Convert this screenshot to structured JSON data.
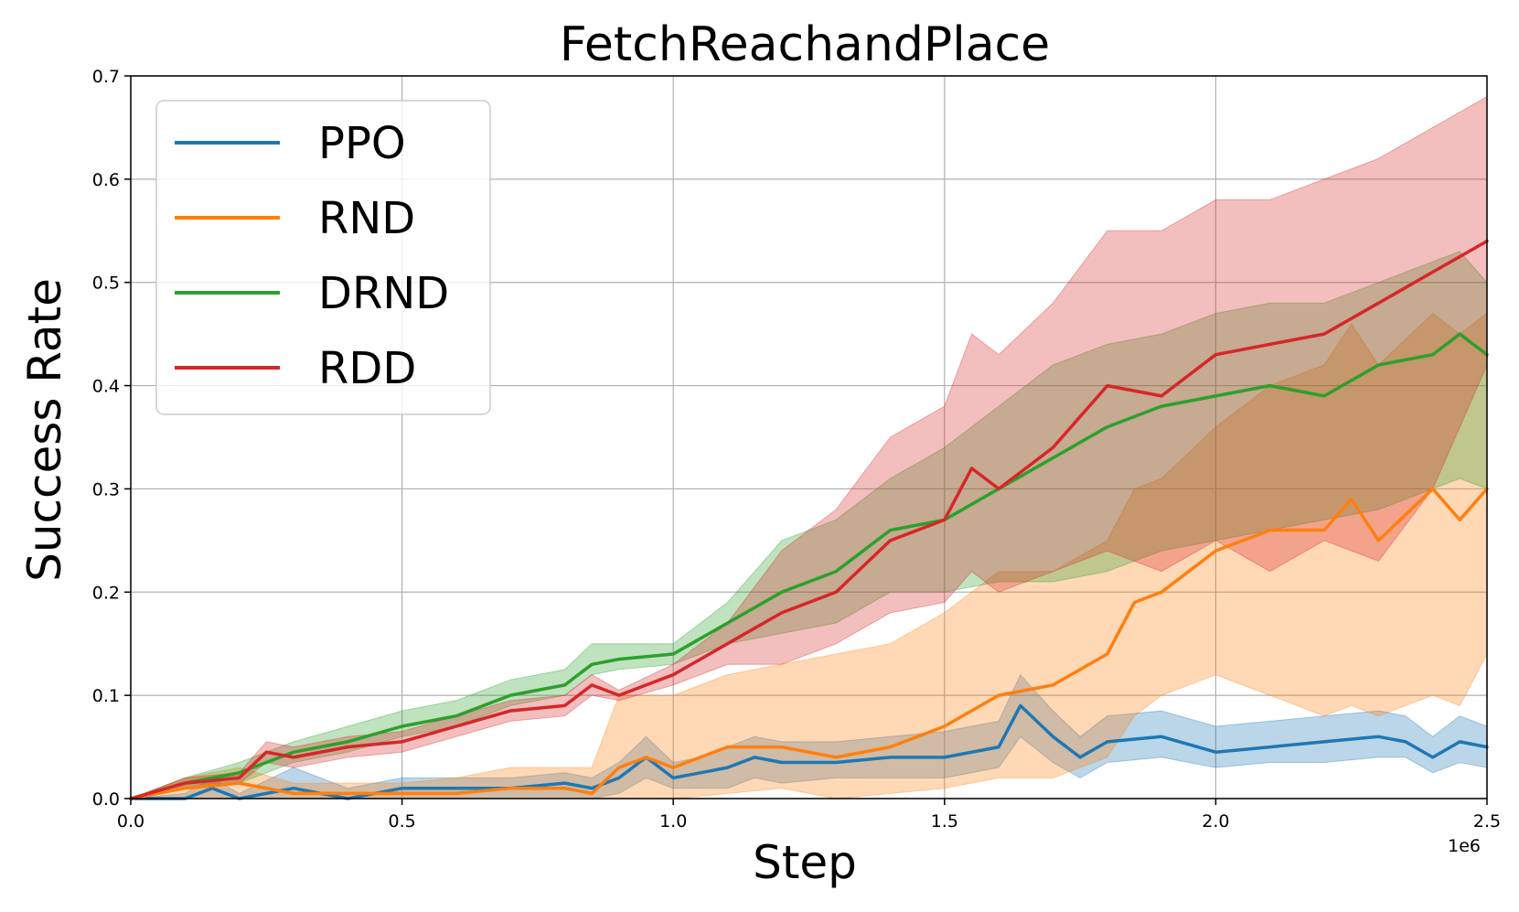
{
  "chart_data": {
    "type": "line",
    "title": "FetchReachandPlace",
    "xlabel": "Step",
    "ylabel": "Success Rate",
    "x_offset_label": "1e6",
    "xlim": [
      0,
      2.5
    ],
    "ylim": [
      0,
      0.7
    ],
    "xticks": [
      0.0,
      0.5,
      1.0,
      1.5,
      2.0,
      2.5
    ],
    "xtick_labels": [
      "0.0",
      "0.5",
      "1.0",
      "1.5",
      "2.0",
      "2.5"
    ],
    "yticks": [
      0.0,
      0.1,
      0.2,
      0.3,
      0.4,
      0.5,
      0.6,
      0.7
    ],
    "ytick_labels": [
      "0.0",
      "0.1",
      "0.2",
      "0.3",
      "0.4",
      "0.5",
      "0.6",
      "0.7"
    ],
    "grid": true,
    "legend_position": "upper-left",
    "series": [
      {
        "name": "PPO",
        "color": "#1f77b4",
        "x": [
          0,
          0.1,
          0.15,
          0.2,
          0.3,
          0.4,
          0.5,
          0.6,
          0.7,
          0.8,
          0.85,
          0.9,
          0.95,
          1.0,
          1.05,
          1.1,
          1.15,
          1.2,
          1.3,
          1.4,
          1.5,
          1.6,
          1.64,
          1.7,
          1.75,
          1.8,
          1.9,
          2.0,
          2.1,
          2.2,
          2.3,
          2.35,
          2.4,
          2.45,
          2.5
        ],
        "y": [
          0,
          0.0,
          0.01,
          0.0,
          0.01,
          0.0,
          0.01,
          0.01,
          0.01,
          0.015,
          0.01,
          0.02,
          0.04,
          0.02,
          0.025,
          0.03,
          0.04,
          0.035,
          0.035,
          0.04,
          0.04,
          0.05,
          0.09,
          0.06,
          0.04,
          0.055,
          0.06,
          0.045,
          0.05,
          0.055,
          0.06,
          0.055,
          0.04,
          0.055,
          0.05
        ],
        "lower": [
          0,
          0.0,
          0.0,
          0.0,
          0.0,
          0.0,
          0.0,
          0.0,
          0.0,
          0.0,
          0.0,
          0.005,
          0.02,
          0.01,
          0.01,
          0.01,
          0.02,
          0.015,
          0.02,
          0.02,
          0.02,
          0.03,
          0.06,
          0.035,
          0.02,
          0.035,
          0.04,
          0.03,
          0.035,
          0.035,
          0.04,
          0.04,
          0.025,
          0.035,
          0.03
        ],
        "upper": [
          0,
          0.005,
          0.02,
          0.005,
          0.03,
          0.01,
          0.02,
          0.02,
          0.02,
          0.025,
          0.02,
          0.035,
          0.06,
          0.035,
          0.04,
          0.05,
          0.06,
          0.055,
          0.055,
          0.06,
          0.065,
          0.075,
          0.12,
          0.085,
          0.06,
          0.08,
          0.085,
          0.07,
          0.075,
          0.08,
          0.085,
          0.08,
          0.06,
          0.08,
          0.07
        ]
      },
      {
        "name": "RND",
        "color": "#ff7f0e",
        "x": [
          0,
          0.1,
          0.2,
          0.3,
          0.4,
          0.5,
          0.6,
          0.7,
          0.8,
          0.85,
          0.9,
          0.95,
          1.0,
          1.1,
          1.2,
          1.3,
          1.4,
          1.5,
          1.6,
          1.7,
          1.8,
          1.85,
          1.9,
          2.0,
          2.1,
          2.2,
          2.25,
          2.3,
          2.4,
          2.45,
          2.5
        ],
        "y": [
          0,
          0.01,
          0.015,
          0.005,
          0.005,
          0.005,
          0.005,
          0.01,
          0.01,
          0.005,
          0.03,
          0.04,
          0.03,
          0.05,
          0.05,
          0.04,
          0.05,
          0.07,
          0.1,
          0.11,
          0.14,
          0.19,
          0.2,
          0.24,
          0.26,
          0.26,
          0.29,
          0.25,
          0.3,
          0.27,
          0.3
        ],
        "lower": [
          0,
          0.0,
          0.0,
          0.0,
          0.0,
          0.0,
          0.0,
          0.0,
          0.0,
          0.0,
          0.0,
          0.0,
          0.0,
          0.005,
          0.01,
          0.0,
          0.005,
          0.01,
          0.02,
          0.02,
          0.04,
          0.08,
          0.1,
          0.12,
          0.1,
          0.08,
          0.09,
          0.08,
          0.1,
          0.09,
          0.14
        ],
        "upper": [
          0,
          0.02,
          0.03,
          0.015,
          0.015,
          0.015,
          0.02,
          0.03,
          0.03,
          0.03,
          0.1,
          0.1,
          0.1,
          0.12,
          0.13,
          0.14,
          0.15,
          0.18,
          0.22,
          0.22,
          0.25,
          0.3,
          0.31,
          0.36,
          0.4,
          0.42,
          0.46,
          0.42,
          0.47,
          0.45,
          0.47
        ]
      },
      {
        "name": "DRND",
        "color": "#2ca02c",
        "x": [
          0,
          0.1,
          0.2,
          0.3,
          0.4,
          0.5,
          0.6,
          0.7,
          0.8,
          0.85,
          0.9,
          1.0,
          1.1,
          1.2,
          1.3,
          1.4,
          1.5,
          1.6,
          1.7,
          1.8,
          1.9,
          2.0,
          2.1,
          2.2,
          2.3,
          2.4,
          2.45,
          2.5
        ],
        "y": [
          0,
          0.015,
          0.025,
          0.045,
          0.055,
          0.07,
          0.08,
          0.1,
          0.11,
          0.13,
          0.135,
          0.14,
          0.17,
          0.2,
          0.22,
          0.26,
          0.27,
          0.3,
          0.33,
          0.36,
          0.38,
          0.39,
          0.4,
          0.39,
          0.42,
          0.43,
          0.45,
          0.43
        ],
        "lower": [
          0,
          0.01,
          0.015,
          0.035,
          0.045,
          0.06,
          0.07,
          0.09,
          0.1,
          0.12,
          0.125,
          0.13,
          0.15,
          0.16,
          0.17,
          0.2,
          0.2,
          0.21,
          0.21,
          0.22,
          0.24,
          0.25,
          0.26,
          0.27,
          0.28,
          0.3,
          0.31,
          0.3
        ],
        "upper": [
          0,
          0.02,
          0.035,
          0.055,
          0.07,
          0.085,
          0.095,
          0.115,
          0.125,
          0.15,
          0.15,
          0.15,
          0.19,
          0.25,
          0.27,
          0.31,
          0.34,
          0.38,
          0.42,
          0.44,
          0.45,
          0.47,
          0.48,
          0.48,
          0.5,
          0.52,
          0.53,
          0.5
        ]
      },
      {
        "name": "RDD",
        "color": "#d62728",
        "x": [
          0,
          0.1,
          0.2,
          0.25,
          0.3,
          0.4,
          0.5,
          0.6,
          0.7,
          0.8,
          0.85,
          0.9,
          1.0,
          1.1,
          1.2,
          1.3,
          1.4,
          1.5,
          1.55,
          1.6,
          1.7,
          1.8,
          1.9,
          2.0,
          2.1,
          2.2,
          2.3,
          2.4,
          2.5
        ],
        "y": [
          0,
          0.015,
          0.02,
          0.045,
          0.04,
          0.05,
          0.055,
          0.07,
          0.085,
          0.09,
          0.11,
          0.1,
          0.12,
          0.15,
          0.18,
          0.2,
          0.25,
          0.27,
          0.32,
          0.3,
          0.34,
          0.4,
          0.39,
          0.43,
          0.44,
          0.45,
          0.48,
          0.51,
          0.54
        ],
        "lower": [
          0,
          0.01,
          0.015,
          0.035,
          0.03,
          0.04,
          0.045,
          0.06,
          0.075,
          0.08,
          0.1,
          0.095,
          0.11,
          0.13,
          0.13,
          0.15,
          0.18,
          0.19,
          0.22,
          0.2,
          0.22,
          0.24,
          0.22,
          0.25,
          0.22,
          0.25,
          0.23,
          0.3,
          0.42
        ],
        "upper": [
          0,
          0.02,
          0.025,
          0.055,
          0.05,
          0.06,
          0.065,
          0.08,
          0.095,
          0.1,
          0.12,
          0.105,
          0.13,
          0.17,
          0.24,
          0.28,
          0.35,
          0.38,
          0.45,
          0.43,
          0.48,
          0.55,
          0.55,
          0.58,
          0.58,
          0.6,
          0.62,
          0.65,
          0.68
        ]
      }
    ]
  }
}
